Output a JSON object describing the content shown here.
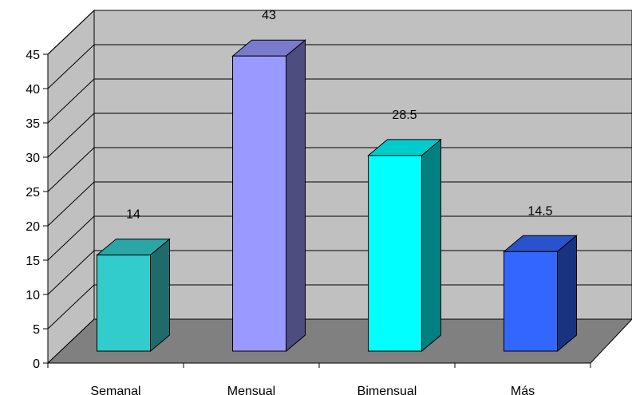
{
  "chart_data": {
    "type": "bar",
    "title": "",
    "xlabel": "",
    "ylabel": "",
    "categories": [
      "Semanal",
      "Mensual",
      "Bimensual",
      "Más"
    ],
    "values": [
      14,
      43,
      28.5,
      14.5
    ],
    "value_labels": [
      "14",
      "43",
      "28.5",
      "14.5"
    ],
    "ylim": [
      0,
      45
    ],
    "yticks": [
      0,
      5,
      10,
      15,
      20,
      25,
      30,
      35,
      40,
      45
    ],
    "ytick_labels": [
      "0",
      "5",
      "10",
      "15",
      "20",
      "25",
      "30",
      "35",
      "40",
      "45"
    ],
    "grid": true,
    "legend": "none",
    "style": "3d-column",
    "colors": {
      "wall": "#c0c0c0",
      "floor": "#808080",
      "bars": [
        {
          "front": "#33cccc",
          "top": "#2aa6a6",
          "side": "#1f6b6b"
        },
        {
          "front": "#9999ff",
          "top": "#7a7acc",
          "side": "#4d4d80"
        },
        {
          "front": "#00ffff",
          "top": "#00cccc",
          "side": "#008080"
        },
        {
          "front": "#3366ff",
          "top": "#2a52cc",
          "side": "#1a3380"
        }
      ]
    }
  }
}
